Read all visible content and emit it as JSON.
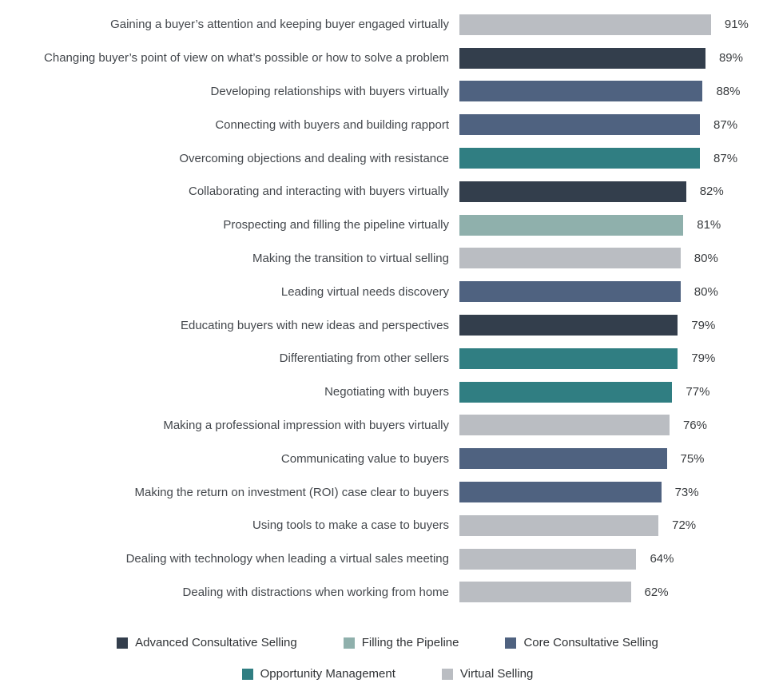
{
  "chart_data": {
    "type": "bar",
    "orientation": "horizontal",
    "value_suffix": "%",
    "xlim": [
      0,
      100
    ],
    "grid": false,
    "legend_position": "bottom",
    "legend": [
      {
        "name": "Advanced Consultative Selling",
        "color": "#333e4c"
      },
      {
        "name": "Filling the Pipeline",
        "color": "#8fb0ac"
      },
      {
        "name": "Core Consultative Selling",
        "color": "#4f6280"
      },
      {
        "name": "Opportunity Management",
        "color": "#307e82"
      },
      {
        "name": "Virtual Selling",
        "color": "#babdc2"
      }
    ],
    "legend_rows": [
      [
        "Advanced Consultative Selling",
        "Filling the Pipeline",
        "Core Consultative Selling"
      ],
      [
        "Opportunity Management",
        "Virtual Selling"
      ]
    ],
    "rows": [
      {
        "label": "Gaining a buyer’s attention and keeping buyer engaged virtually",
        "value": 91,
        "category": "Virtual Selling"
      },
      {
        "label": "Changing buyer’s point of view on what’s possible or how to solve a problem",
        "value": 89,
        "category": "Advanced Consultative Selling"
      },
      {
        "label": "Developing relationships with buyers virtually",
        "value": 88,
        "category": "Core Consultative Selling"
      },
      {
        "label": "Connecting with buyers and building rapport",
        "value": 87,
        "category": "Core Consultative Selling"
      },
      {
        "label": "Overcoming objections and dealing with resistance",
        "value": 87,
        "category": "Opportunity Management"
      },
      {
        "label": "Collaborating and interacting with buyers virtually",
        "value": 82,
        "category": "Advanced Consultative Selling"
      },
      {
        "label": "Prospecting and filling the pipeline virtually",
        "value": 81,
        "category": "Filling the Pipeline"
      },
      {
        "label": "Making the transition to virtual selling",
        "value": 80,
        "category": "Virtual Selling"
      },
      {
        "label": "Leading virtual needs discovery",
        "value": 80,
        "category": "Core Consultative Selling"
      },
      {
        "label": "Educating buyers with new ideas and perspectives",
        "value": 79,
        "category": "Advanced Consultative Selling"
      },
      {
        "label": "Differentiating from other sellers",
        "value": 79,
        "category": "Opportunity Management"
      },
      {
        "label": "Negotiating with buyers",
        "value": 77,
        "category": "Opportunity Management"
      },
      {
        "label": "Making a professional impression with buyers virtually",
        "value": 76,
        "category": "Virtual Selling"
      },
      {
        "label": "Communicating value to buyers",
        "value": 75,
        "category": "Core Consultative Selling"
      },
      {
        "label": "Making the return on investment (ROI) case clear to buyers",
        "value": 73,
        "category": "Core Consultative Selling"
      },
      {
        "label": "Using tools to make a case to buyers",
        "value": 72,
        "category": "Virtual Selling"
      },
      {
        "label": "Dealing with technology when leading a virtual sales meeting",
        "value": 64,
        "category": "Virtual Selling"
      },
      {
        "label": "Dealing with distractions when working from home",
        "value": 62,
        "category": "Virtual Selling"
      }
    ]
  }
}
